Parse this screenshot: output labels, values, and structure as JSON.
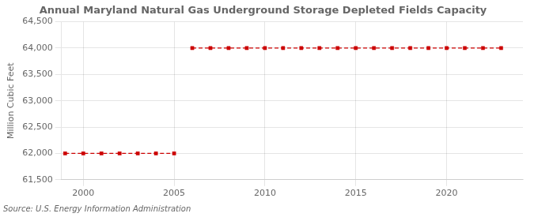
{
  "chart_data": {
    "type": "line",
    "title": "Annual Maryland Natural Gas Underground Storage Depleted Fields Capacity",
    "ylabel": "Million Cubic Feet",
    "source": "Source: U.S. Energy Information Administration",
    "series": [
      {
        "x": [
          1999,
          2000,
          2001,
          2002,
          2003,
          2004,
          2005
        ],
        "values": [
          62000,
          62000,
          62000,
          62000,
          62000,
          62000,
          62000
        ],
        "color": "#cc0000",
        "marker": "square",
        "line_style": "dashed"
      },
      {
        "x": [
          2006,
          2007,
          2008,
          2009,
          2010,
          2011,
          2012,
          2013,
          2014,
          2015,
          2016,
          2017,
          2018,
          2019,
          2020,
          2021,
          2022,
          2023
        ],
        "values": [
          64000,
          64000,
          64000,
          64000,
          64000,
          64000,
          64000,
          64000,
          64000,
          64000,
          64000,
          64000,
          64000,
          64000,
          64000,
          64000,
          64000,
          64000
        ],
        "color": "#cc0000",
        "marker": "square",
        "line_style": "dashed"
      }
    ],
    "xlim": [
      1998.8,
      2024.2
    ],
    "xticks": [
      2000,
      2005,
      2010,
      2015,
      2020
    ],
    "ylim": [
      61500,
      64500
    ],
    "yticks": [
      {
        "value": 61500,
        "label": "61,500"
      },
      {
        "value": 62000,
        "label": "62,000"
      },
      {
        "value": 62500,
        "label": "62,500"
      },
      {
        "value": 63000,
        "label": "63,000"
      },
      {
        "value": 63500,
        "label": "63,500"
      },
      {
        "value": 64000,
        "label": "64,000"
      },
      {
        "value": 64500,
        "label": "64,500"
      }
    ],
    "grid": true
  }
}
